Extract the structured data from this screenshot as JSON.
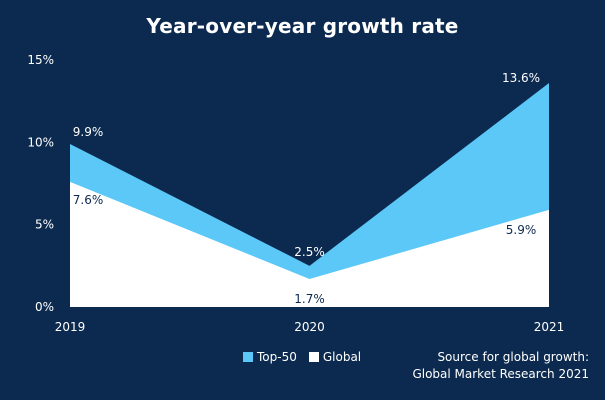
{
  "chart_data": {
    "type": "area",
    "title": "Year-over-year growth rate",
    "x": [
      "2019",
      "2020",
      "2021"
    ],
    "ylim": [
      0,
      15
    ],
    "yticks": [
      "0%",
      "5%",
      "10%",
      "15%"
    ],
    "yticks_values": [
      0,
      5,
      10,
      15
    ],
    "series": [
      {
        "name": "Top-50",
        "values": [
          9.9,
          2.5,
          13.6
        ],
        "labels": [
          "9.9%",
          "2.5%",
          "13.6%"
        ],
        "color": "#5bc8f7"
      },
      {
        "name": "Global",
        "values": [
          7.6,
          1.7,
          5.9
        ],
        "labels": [
          "7.6%",
          "1.7%",
          "5.9%"
        ],
        "color": "#ffffff"
      }
    ],
    "legend": "bottom-center",
    "grid": false
  },
  "colors": {
    "background": "#0c2a4f",
    "label_dark": "#0c2a4f"
  },
  "source_note": {
    "line1": "Source for global growth:",
    "line2": "Global Market Research 2021"
  }
}
